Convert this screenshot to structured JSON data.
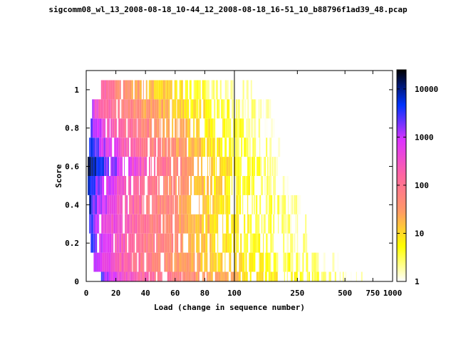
{
  "chart_data": {
    "type": "heatmap",
    "title": "sigcomm08_wl_13_2008-08-18_10-44_12_2008-08-18_16-51_10_b88796f1ad39_48.pcap",
    "xlabel": "Load (change in sequence number)",
    "ylabel": "Score",
    "x_axis": {
      "segments": [
        {
          "scale": "linear",
          "range": [
            0,
            100
          ],
          "ticks": [
            0,
            20,
            40,
            60,
            80,
            100
          ],
          "tick_labels": [
            "0",
            "20",
            "40",
            "60",
            "80",
            "100"
          ]
        },
        {
          "scale": "log",
          "range": [
            100,
            1000
          ],
          "ticks": [
            100,
            250,
            500,
            750,
            1000
          ],
          "tick_labels": [
            "100",
            "250",
            "500",
            "750",
            "1000"
          ]
        }
      ]
    },
    "y_axis": {
      "range": [
        0,
        1.1
      ],
      "ticks": [
        0,
        0.2,
        0.4,
        0.6,
        0.8,
        1
      ],
      "tick_labels": [
        "0",
        "0.2",
        "0.4",
        "0.6",
        "0.8",
        "1"
      ]
    },
    "colorbar": {
      "scale": "log",
      "range": [
        1,
        25000
      ],
      "ticks": [
        1,
        10,
        100,
        1000,
        10000
      ],
      "tick_labels": [
        "1",
        "10",
        "100",
        "1000",
        "10000"
      ],
      "colormap": [
        "#ffffff",
        "#ffff00",
        "#ff9966",
        "#ff66a0",
        "#dd33ff",
        "#0033ff",
        "#000000"
      ]
    },
    "score_bins": [
      0.0,
      0.1,
      0.2,
      0.3,
      0.4,
      0.5,
      0.6,
      0.7,
      0.8,
      0.9,
      1.0
    ],
    "density_rows": [
      {
        "score": 0.0,
        "peak": 2000,
        "load_start": 10,
        "load_end": 650
      },
      {
        "score": 0.1,
        "peak": 1200,
        "load_start": 5,
        "load_end": 450
      },
      {
        "score": 0.2,
        "peak": 2500,
        "load_start": 3,
        "load_end": 300
      },
      {
        "score": 0.3,
        "peak": 3000,
        "load_start": 2,
        "load_end": 280
      },
      {
        "score": 0.4,
        "peak": 4000,
        "load_start": 2,
        "load_end": 260
      },
      {
        "score": 0.5,
        "peak": 6000,
        "load_start": 1,
        "load_end": 230
      },
      {
        "score": 0.6,
        "peak": 25000,
        "load_start": 1,
        "load_end": 220
      },
      {
        "score": 0.7,
        "peak": 5000,
        "load_start": 2,
        "load_end": 190
      },
      {
        "score": 0.8,
        "peak": 2000,
        "load_start": 3,
        "load_end": 180
      },
      {
        "score": 0.9,
        "peak": 600,
        "load_start": 4,
        "load_end": 170
      },
      {
        "score": 1.0,
        "peak": 200,
        "load_start": 10,
        "load_end": 130
      }
    ],
    "grid": false,
    "legend": "colorbar-right"
  }
}
